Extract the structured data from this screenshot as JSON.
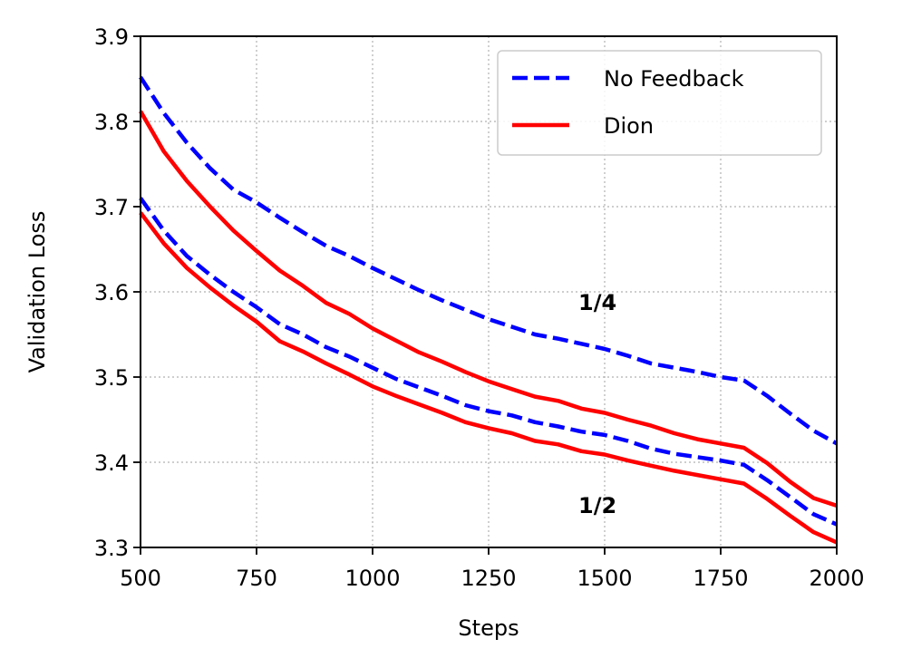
{
  "chart_data": {
    "type": "line",
    "title": "",
    "xlabel": "Steps",
    "ylabel": "Validation Loss",
    "xlim": [
      500,
      2000
    ],
    "ylim": [
      3.3,
      3.9
    ],
    "xticks": [
      "500",
      "750",
      "1000",
      "1250",
      "1500",
      "1750",
      "2000"
    ],
    "xtick_values": [
      500,
      750,
      1000,
      1250,
      1500,
      1750,
      2000
    ],
    "yticks": [
      "3.3",
      "3.4",
      "3.5",
      "3.6",
      "3.7",
      "3.8",
      "3.9"
    ],
    "ytick_values": [
      3.3,
      3.4,
      3.5,
      3.6,
      3.7,
      3.8,
      3.9
    ],
    "grid": true,
    "legend_position": "top-right",
    "colors": {
      "no_feedback": "#0000ff",
      "dion": "#ff0000"
    },
    "legend": [
      {
        "name": "No Feedback",
        "color": "#0000ff",
        "style": "dashed"
      },
      {
        "name": "Dion",
        "color": "#ff0000",
        "style": "solid"
      }
    ],
    "annotations": [
      {
        "text": "1/4",
        "x": 1440,
        "y": 3.58
      },
      {
        "text": "1/2",
        "x": 1440,
        "y": 3.342
      }
    ],
    "series": [
      {
        "name": "No Feedback",
        "group": "1/4",
        "color": "#0000ff",
        "style": "dashed",
        "x": [
          500,
          550,
          600,
          650,
          700,
          750,
          800,
          850,
          900,
          950,
          1000,
          1050,
          1100,
          1150,
          1200,
          1250,
          1300,
          1350,
          1400,
          1450,
          1500,
          1550,
          1600,
          1650,
          1700,
          1750,
          1800,
          1850,
          1900,
          1950,
          2000
        ],
        "values": [
          3.852,
          3.81,
          3.775,
          3.745,
          3.72,
          3.705,
          3.687,
          3.67,
          3.654,
          3.642,
          3.628,
          3.615,
          3.602,
          3.59,
          3.579,
          3.568,
          3.559,
          3.55,
          3.545,
          3.539,
          3.533,
          3.525,
          3.516,
          3.511,
          3.506,
          3.5,
          3.496,
          3.478,
          3.457,
          3.437,
          3.422
        ]
      },
      {
        "name": "Dion",
        "group": "1/4",
        "color": "#ff0000",
        "style": "solid",
        "x": [
          500,
          550,
          600,
          650,
          700,
          750,
          800,
          850,
          900,
          950,
          1000,
          1050,
          1100,
          1150,
          1200,
          1250,
          1300,
          1350,
          1400,
          1450,
          1500,
          1550,
          1600,
          1650,
          1700,
          1750,
          1800,
          1850,
          1900,
          1950,
          2000
        ],
        "values": [
          3.812,
          3.765,
          3.73,
          3.7,
          3.672,
          3.648,
          3.625,
          3.607,
          3.587,
          3.574,
          3.557,
          3.543,
          3.529,
          3.518,
          3.506,
          3.495,
          3.486,
          3.477,
          3.472,
          3.463,
          3.458,
          3.45,
          3.443,
          3.434,
          3.427,
          3.422,
          3.417,
          3.399,
          3.377,
          3.358,
          3.349
        ]
      },
      {
        "name": "No Feedback",
        "group": "1/2",
        "color": "#0000ff",
        "style": "dashed",
        "x": [
          500,
          550,
          600,
          650,
          700,
          750,
          800,
          850,
          900,
          950,
          1000,
          1050,
          1100,
          1150,
          1200,
          1250,
          1300,
          1350,
          1400,
          1450,
          1500,
          1550,
          1600,
          1650,
          1700,
          1750,
          1800,
          1850,
          1900,
          1950,
          2000
        ],
        "values": [
          3.71,
          3.672,
          3.642,
          3.62,
          3.6,
          3.582,
          3.562,
          3.55,
          3.535,
          3.524,
          3.511,
          3.498,
          3.488,
          3.478,
          3.467,
          3.46,
          3.455,
          3.447,
          3.442,
          3.436,
          3.432,
          3.425,
          3.416,
          3.41,
          3.406,
          3.402,
          3.397,
          3.379,
          3.359,
          3.339,
          3.327
        ]
      },
      {
        "name": "Dion",
        "group": "1/2",
        "color": "#ff0000",
        "style": "solid",
        "x": [
          500,
          550,
          600,
          650,
          700,
          750,
          800,
          850,
          900,
          950,
          1000,
          1050,
          1100,
          1150,
          1200,
          1250,
          1300,
          1350,
          1400,
          1450,
          1500,
          1550,
          1600,
          1650,
          1700,
          1750,
          1800,
          1850,
          1900,
          1950,
          2000
        ],
        "values": [
          3.693,
          3.657,
          3.628,
          3.605,
          3.584,
          3.565,
          3.542,
          3.53,
          3.516,
          3.503,
          3.489,
          3.478,
          3.468,
          3.458,
          3.447,
          3.44,
          3.434,
          3.425,
          3.421,
          3.413,
          3.409,
          3.402,
          3.396,
          3.39,
          3.385,
          3.38,
          3.375,
          3.357,
          3.337,
          3.318,
          3.306
        ]
      }
    ]
  }
}
